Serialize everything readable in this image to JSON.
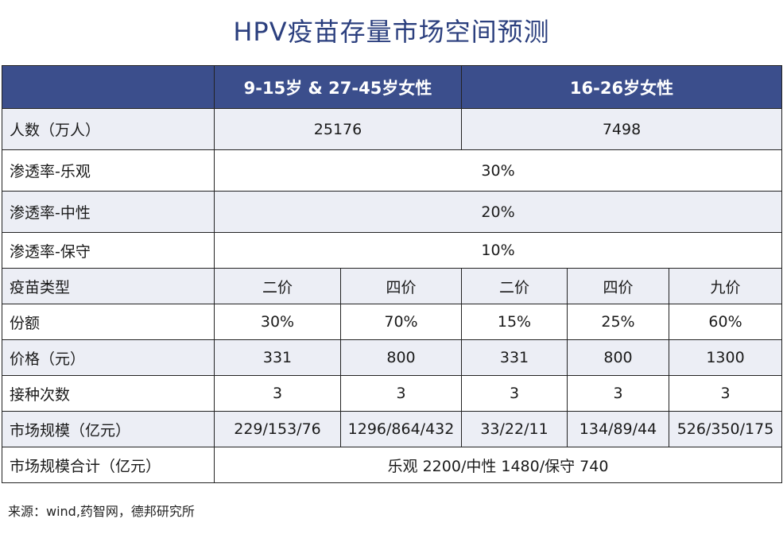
{
  "title": "HPV疫苗存量市场空间预测",
  "table": {
    "header": {
      "group1": "9-15岁 & 27-45岁女性",
      "group2": "16-26岁女性"
    },
    "population": {
      "label": "人数（万人）",
      "group1": "25176",
      "group2": "7498"
    },
    "penetration_optimistic": {
      "label": "渗透率-乐观",
      "value": "30%"
    },
    "penetration_neutral": {
      "label": "渗透率-中性",
      "value": "20%"
    },
    "penetration_conservative": {
      "label": "渗透率-保守",
      "value": "10%"
    },
    "vaccine_type": {
      "label": "疫苗类型",
      "values": [
        "二价",
        "四价",
        "二价",
        "四价",
        "九价"
      ]
    },
    "share": {
      "label": "份额",
      "values": [
        "30%",
        "70%",
        "15%",
        "25%",
        "60%"
      ]
    },
    "price": {
      "label": "价格（元）",
      "values": [
        "331",
        "800",
        "331",
        "800",
        "1300"
      ]
    },
    "doses": {
      "label": "接种次数",
      "values": [
        "3",
        "3",
        "3",
        "3",
        "3"
      ]
    },
    "market_size": {
      "label": "市场规模（亿元）",
      "values": [
        "229/153/76",
        "1296/864/432",
        "33/22/11",
        "134/89/44",
        "526/350/175"
      ]
    },
    "market_total": {
      "label": "市场规模合计（亿元）",
      "value": "乐观 2200/中性 1480/保守 740"
    }
  },
  "source": "来源：wind,药智网，德邦研究所",
  "colors": {
    "title": "#2b3f7e",
    "header_bg": "#3b4e8c",
    "shaded_row": "#eceef5"
  }
}
